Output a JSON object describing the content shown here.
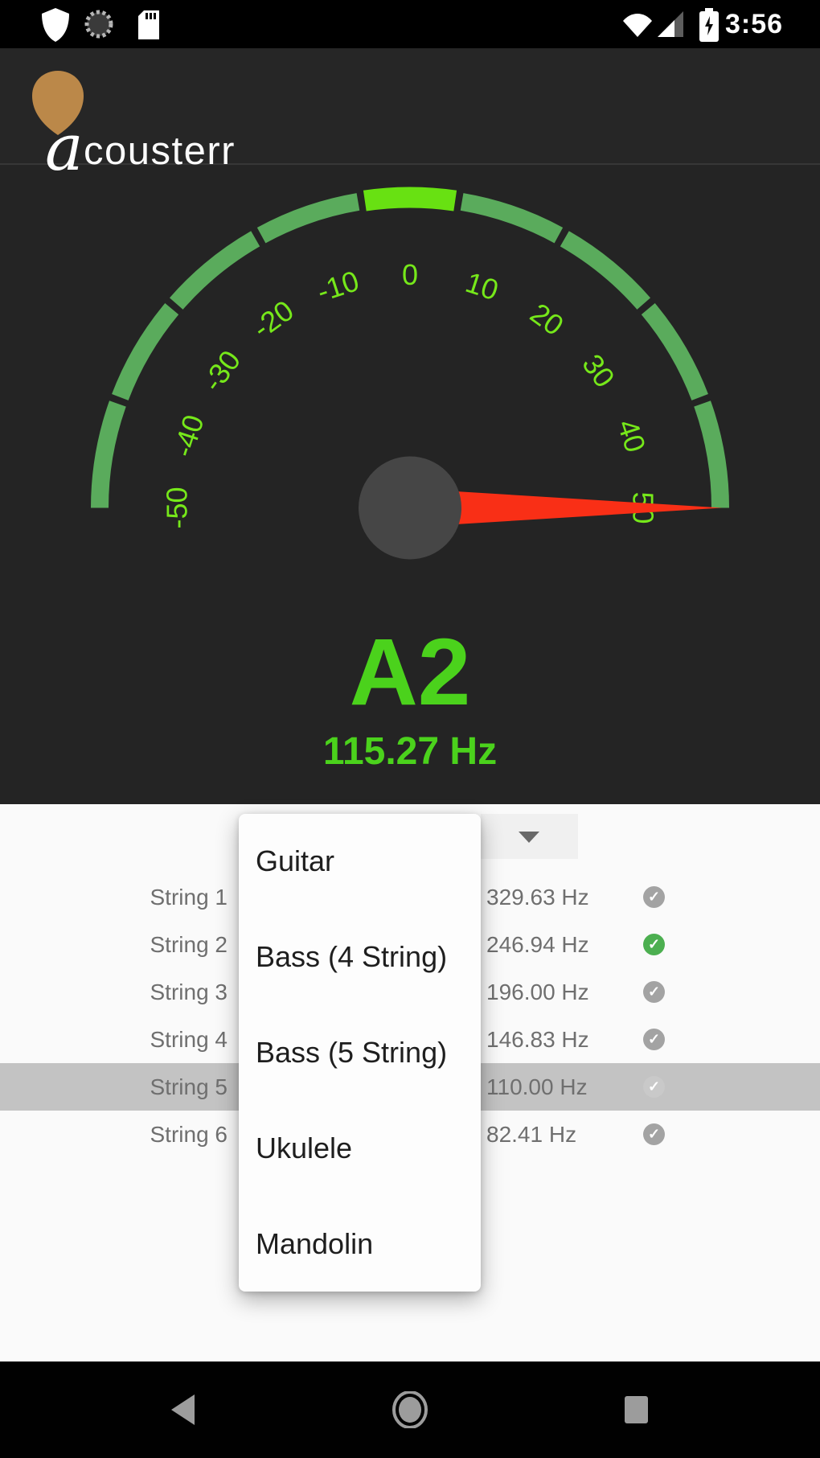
{
  "status_bar": {
    "time": "3:56",
    "left_icons": [
      "shield-icon",
      "sync-spinner-icon",
      "sdcard-icon"
    ],
    "right_icons": [
      "wifi-icon",
      "cell-signal-icon",
      "battery-charging-icon"
    ]
  },
  "header": {
    "logo_letter": "a",
    "logo_rest": "cousterr",
    "pick_color": "#bb8849"
  },
  "tuner": {
    "note": "A2",
    "frequency": "115.27 Hz",
    "note_color": "#4bd21c",
    "gauge": {
      "min": -50,
      "max": 50,
      "needle_value": 50,
      "tick_values": [
        -50,
        -40,
        -30,
        -20,
        -10,
        0,
        10,
        20,
        30,
        40,
        50
      ],
      "tick_labels": [
        "-50",
        "-40",
        "-30",
        "-20",
        "-10",
        "0",
        "10",
        "20",
        "30",
        "40",
        "50"
      ],
      "segment_edges": [
        -50,
        -38.75,
        -27.5,
        -16.25,
        -5,
        5,
        16.25,
        27.5,
        38.75,
        50
      ],
      "center_segment_index": 4,
      "colors": {
        "arc": "#5aab5c",
        "center_segment": "#68e112",
        "labels": "#76e81a",
        "needle": "#f92f16",
        "hub": "#464646"
      }
    }
  },
  "strings_panel": {
    "spinner": {
      "arrow_icon": "dropdown-arrow-icon"
    },
    "check_glyph": "✓",
    "highlighted_index": 4,
    "rows": [
      {
        "label": "String 1",
        "frequency": "329.63 Hz",
        "status": "gray"
      },
      {
        "label": "String 2",
        "frequency": "246.94 Hz",
        "status": "green"
      },
      {
        "label": "String 3",
        "frequency": "196.00 Hz",
        "status": "gray"
      },
      {
        "label": "String 4",
        "frequency": "146.83 Hz",
        "status": "gray"
      },
      {
        "label": "String 5",
        "frequency": "110.00 Hz",
        "status": "muted"
      },
      {
        "label": "String 6",
        "frequency": "82.41 Hz",
        "status": "gray"
      }
    ],
    "dropdown_options": [
      "Guitar",
      "Bass (4 String)",
      "Bass (5 String)",
      "Ukulele",
      "Mandolin"
    ]
  },
  "nav_bar": {
    "icons": [
      "back-icon",
      "home-icon",
      "recents-icon"
    ]
  }
}
